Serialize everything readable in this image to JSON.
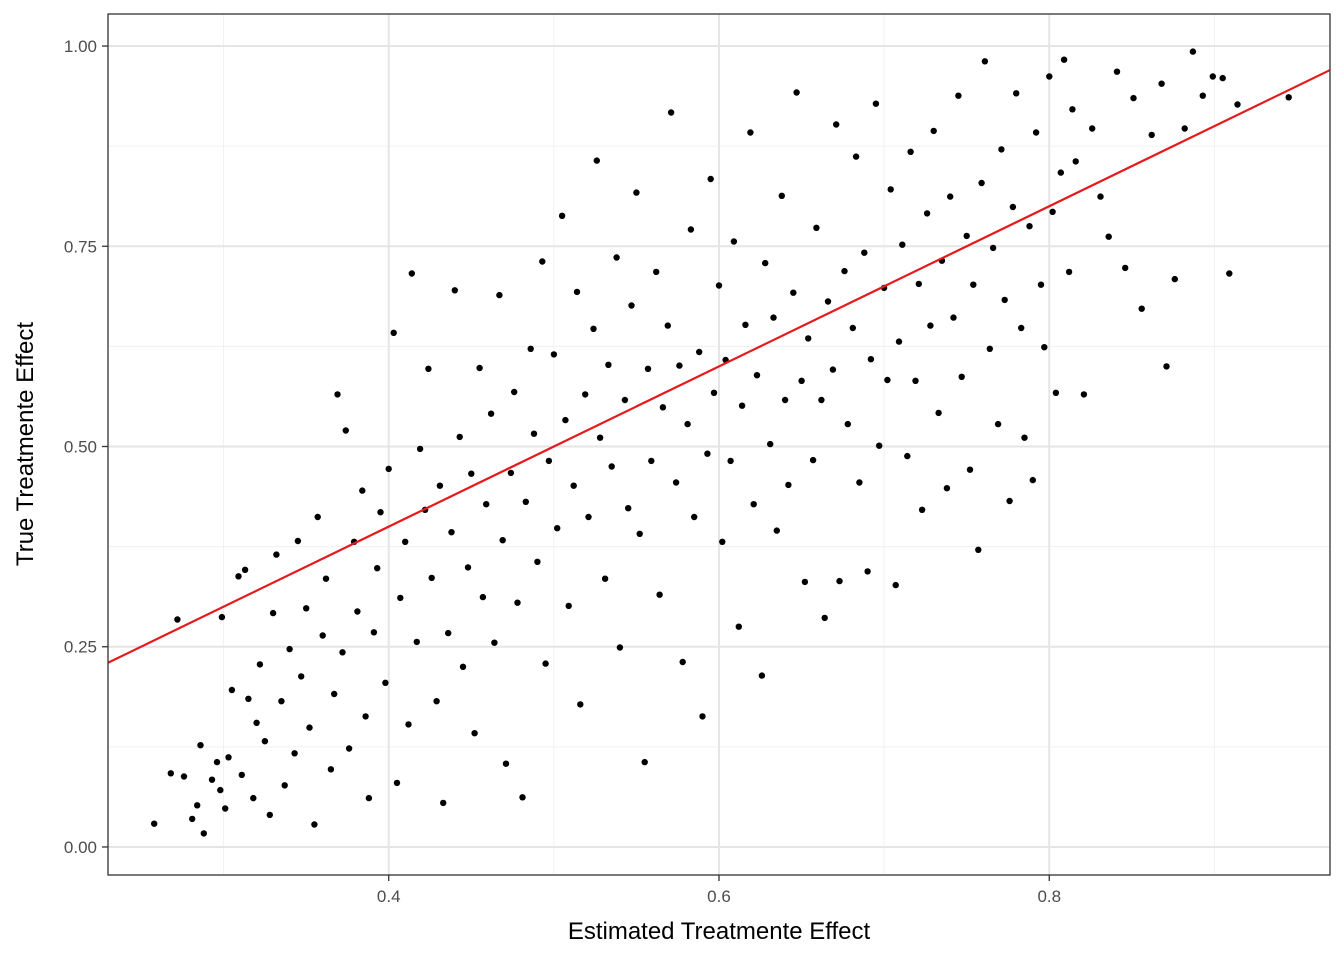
{
  "chart_data": {
    "type": "scatter",
    "xlabel": "Estimated Treatmente Effect",
    "ylabel": "True Treatmente Effect",
    "xlim": [
      0.23,
      0.97
    ],
    "ylim": [
      -0.035,
      1.04
    ],
    "x_ticks": [
      {
        "value": 0.4,
        "label": "0.4"
      },
      {
        "value": 0.6,
        "label": "0.6"
      },
      {
        "value": 0.8,
        "label": "0.8"
      }
    ],
    "y_ticks": [
      {
        "value": 0.0,
        "label": "0.00"
      },
      {
        "value": 0.25,
        "label": "0.25"
      },
      {
        "value": 0.5,
        "label": "0.50"
      },
      {
        "value": 0.75,
        "label": "0.75"
      },
      {
        "value": 1.0,
        "label": "1.00"
      }
    ],
    "grid": true,
    "point_color": "#000000",
    "line_color": "#e41a1c",
    "reference_line": {
      "slope": 1,
      "intercept": 0
    },
    "series": [
      {
        "points": [
          [
            0.258,
            0.029
          ],
          [
            0.268,
            0.092
          ],
          [
            0.272,
            0.284
          ],
          [
            0.276,
            0.088
          ],
          [
            0.281,
            0.035
          ],
          [
            0.284,
            0.052
          ],
          [
            0.286,
            0.127
          ],
          [
            0.288,
            0.017
          ],
          [
            0.293,
            0.084
          ],
          [
            0.296,
            0.106
          ],
          [
            0.298,
            0.071
          ],
          [
            0.299,
            0.287
          ],
          [
            0.301,
            0.048
          ],
          [
            0.303,
            0.112
          ],
          [
            0.305,
            0.196
          ],
          [
            0.309,
            0.338
          ],
          [
            0.311,
            0.09
          ],
          [
            0.313,
            0.346
          ],
          [
            0.315,
            0.185
          ],
          [
            0.318,
            0.061
          ],
          [
            0.32,
            0.155
          ],
          [
            0.322,
            0.228
          ],
          [
            0.325,
            0.132
          ],
          [
            0.328,
            0.04
          ],
          [
            0.33,
            0.292
          ],
          [
            0.332,
            0.365
          ],
          [
            0.335,
            0.182
          ],
          [
            0.337,
            0.077
          ],
          [
            0.34,
            0.247
          ],
          [
            0.343,
            0.117
          ],
          [
            0.345,
            0.382
          ],
          [
            0.347,
            0.213
          ],
          [
            0.35,
            0.298
          ],
          [
            0.352,
            0.149
          ],
          [
            0.355,
            0.028
          ],
          [
            0.357,
            0.412
          ],
          [
            0.36,
            0.264
          ],
          [
            0.362,
            0.335
          ],
          [
            0.365,
            0.097
          ],
          [
            0.367,
            0.191
          ],
          [
            0.369,
            0.565
          ],
          [
            0.372,
            0.243
          ],
          [
            0.374,
            0.52
          ],
          [
            0.376,
            0.123
          ],
          [
            0.379,
            0.381
          ],
          [
            0.381,
            0.294
          ],
          [
            0.384,
            0.445
          ],
          [
            0.386,
            0.163
          ],
          [
            0.388,
            0.061
          ],
          [
            0.391,
            0.268
          ],
          [
            0.393,
            0.348
          ],
          [
            0.395,
            0.418
          ],
          [
            0.398,
            0.205
          ],
          [
            0.4,
            0.472
          ],
          [
            0.403,
            0.642
          ],
          [
            0.405,
            0.08
          ],
          [
            0.407,
            0.311
          ],
          [
            0.41,
            0.381
          ],
          [
            0.412,
            0.153
          ],
          [
            0.414,
            0.716
          ],
          [
            0.417,
            0.256
          ],
          [
            0.419,
            0.497
          ],
          [
            0.422,
            0.421
          ],
          [
            0.424,
            0.597
          ],
          [
            0.426,
            0.336
          ],
          [
            0.429,
            0.182
          ],
          [
            0.431,
            0.451
          ],
          [
            0.433,
            0.055
          ],
          [
            0.436,
            0.267
          ],
          [
            0.438,
            0.393
          ],
          [
            0.44,
            0.695
          ],
          [
            0.443,
            0.512
          ],
          [
            0.445,
            0.225
          ],
          [
            0.448,
            0.349
          ],
          [
            0.45,
            0.466
          ],
          [
            0.452,
            0.142
          ],
          [
            0.455,
            0.598
          ],
          [
            0.457,
            0.312
          ],
          [
            0.459,
            0.428
          ],
          [
            0.462,
            0.541
          ],
          [
            0.464,
            0.255
          ],
          [
            0.467,
            0.689
          ],
          [
            0.469,
            0.383
          ],
          [
            0.471,
            0.104
          ],
          [
            0.474,
            0.467
          ],
          [
            0.476,
            0.568
          ],
          [
            0.478,
            0.305
          ],
          [
            0.481,
            0.062
          ],
          [
            0.483,
            0.431
          ],
          [
            0.486,
            0.622
          ],
          [
            0.488,
            0.516
          ],
          [
            0.49,
            0.356
          ],
          [
            0.493,
            0.731
          ],
          [
            0.495,
            0.229
          ],
          [
            0.497,
            0.482
          ],
          [
            0.5,
            0.615
          ],
          [
            0.502,
            0.398
          ],
          [
            0.505,
            0.788
          ],
          [
            0.507,
            0.533
          ],
          [
            0.509,
            0.301
          ],
          [
            0.512,
            0.451
          ],
          [
            0.514,
            0.693
          ],
          [
            0.516,
            0.178
          ],
          [
            0.519,
            0.565
          ],
          [
            0.521,
            0.412
          ],
          [
            0.524,
            0.647
          ],
          [
            0.526,
            0.857
          ],
          [
            0.528,
            0.511
          ],
          [
            0.531,
            0.335
          ],
          [
            0.533,
            0.602
          ],
          [
            0.535,
            0.475
          ],
          [
            0.538,
            0.736
          ],
          [
            0.54,
            0.249
          ],
          [
            0.543,
            0.558
          ],
          [
            0.545,
            0.423
          ],
          [
            0.547,
            0.676
          ],
          [
            0.55,
            0.817
          ],
          [
            0.552,
            0.391
          ],
          [
            0.555,
            0.106
          ],
          [
            0.557,
            0.597
          ],
          [
            0.559,
            0.482
          ],
          [
            0.562,
            0.718
          ],
          [
            0.564,
            0.315
          ],
          [
            0.566,
            0.549
          ],
          [
            0.569,
            0.651
          ],
          [
            0.571,
            0.917
          ],
          [
            0.574,
            0.455
          ],
          [
            0.576,
            0.601
          ],
          [
            0.578,
            0.231
          ],
          [
            0.581,
            0.528
          ],
          [
            0.583,
            0.771
          ],
          [
            0.585,
            0.412
          ],
          [
            0.588,
            0.618
          ],
          [
            0.59,
            0.163
          ],
          [
            0.593,
            0.491
          ],
          [
            0.595,
            0.834
          ],
          [
            0.597,
            0.567
          ],
          [
            0.6,
            0.701
          ],
          [
            0.602,
            0.381
          ],
          [
            0.604,
            0.608
          ],
          [
            0.607,
            0.482
          ],
          [
            0.609,
            0.756
          ],
          [
            0.612,
            0.275
          ],
          [
            0.614,
            0.551
          ],
          [
            0.616,
            0.652
          ],
          [
            0.619,
            0.892
          ],
          [
            0.621,
            0.428
          ],
          [
            0.623,
            0.589
          ],
          [
            0.626,
            0.214
          ],
          [
            0.628,
            0.729
          ],
          [
            0.631,
            0.503
          ],
          [
            0.633,
            0.661
          ],
          [
            0.635,
            0.395
          ],
          [
            0.638,
            0.813
          ],
          [
            0.64,
            0.558
          ],
          [
            0.642,
            0.452
          ],
          [
            0.645,
            0.692
          ],
          [
            0.647,
            0.942
          ],
          [
            0.65,
            0.582
          ],
          [
            0.652,
            0.331
          ],
          [
            0.654,
            0.635
          ],
          [
            0.657,
            0.483
          ],
          [
            0.659,
            0.773
          ],
          [
            0.662,
            0.558
          ],
          [
            0.664,
            0.286
          ],
          [
            0.666,
            0.681
          ],
          [
            0.669,
            0.596
          ],
          [
            0.671,
            0.902
          ],
          [
            0.673,
            0.332
          ],
          [
            0.676,
            0.719
          ],
          [
            0.678,
            0.528
          ],
          [
            0.681,
            0.648
          ],
          [
            0.683,
            0.862
          ],
          [
            0.685,
            0.455
          ],
          [
            0.688,
            0.742
          ],
          [
            0.69,
            0.344
          ],
          [
            0.692,
            0.609
          ],
          [
            0.695,
            0.928
          ],
          [
            0.697,
            0.501
          ],
          [
            0.7,
            0.698
          ],
          [
            0.702,
            0.583
          ],
          [
            0.704,
            0.821
          ],
          [
            0.707,
            0.327
          ],
          [
            0.709,
            0.631
          ],
          [
            0.711,
            0.752
          ],
          [
            0.714,
            0.488
          ],
          [
            0.716,
            0.868
          ],
          [
            0.719,
            0.582
          ],
          [
            0.721,
            0.703
          ],
          [
            0.723,
            0.421
          ],
          [
            0.726,
            0.791
          ],
          [
            0.728,
            0.651
          ],
          [
            0.73,
            0.894
          ],
          [
            0.733,
            0.542
          ],
          [
            0.735,
            0.732
          ],
          [
            0.738,
            0.448
          ],
          [
            0.74,
            0.812
          ],
          [
            0.742,
            0.661
          ],
          [
            0.745,
            0.938
          ],
          [
            0.747,
            0.587
          ],
          [
            0.75,
            0.763
          ],
          [
            0.752,
            0.471
          ],
          [
            0.754,
            0.702
          ],
          [
            0.757,
            0.371
          ],
          [
            0.759,
            0.829
          ],
          [
            0.761,
            0.981
          ],
          [
            0.764,
            0.622
          ],
          [
            0.766,
            0.748
          ],
          [
            0.769,
            0.528
          ],
          [
            0.771,
            0.871
          ],
          [
            0.773,
            0.683
          ],
          [
            0.776,
            0.432
          ],
          [
            0.778,
            0.799
          ],
          [
            0.78,
            0.941
          ],
          [
            0.783,
            0.648
          ],
          [
            0.785,
            0.511
          ],
          [
            0.788,
            0.775
          ],
          [
            0.79,
            0.458
          ],
          [
            0.792,
            0.892
          ],
          [
            0.795,
            0.702
          ],
          [
            0.797,
            0.624
          ],
          [
            0.8,
            0.962
          ],
          [
            0.802,
            0.793
          ],
          [
            0.804,
            0.567
          ],
          [
            0.807,
            0.842
          ],
          [
            0.809,
            0.983
          ],
          [
            0.812,
            0.718
          ],
          [
            0.814,
            0.921
          ],
          [
            0.816,
            0.856
          ],
          [
            0.821,
            0.565
          ],
          [
            0.826,
            0.897
          ],
          [
            0.831,
            0.812
          ],
          [
            0.836,
            0.762
          ],
          [
            0.841,
            0.968
          ],
          [
            0.846,
            0.723
          ],
          [
            0.851,
            0.935
          ],
          [
            0.856,
            0.672
          ],
          [
            0.862,
            0.889
          ],
          [
            0.868,
            0.953
          ],
          [
            0.871,
            0.6
          ],
          [
            0.876,
            0.709
          ],
          [
            0.882,
            0.897
          ],
          [
            0.887,
            0.993
          ],
          [
            0.893,
            0.938
          ],
          [
            0.899,
            0.962
          ],
          [
            0.905,
            0.96
          ],
          [
            0.909,
            0.716
          ],
          [
            0.914,
            0.927
          ],
          [
            0.945,
            0.936
          ]
        ]
      }
    ]
  }
}
